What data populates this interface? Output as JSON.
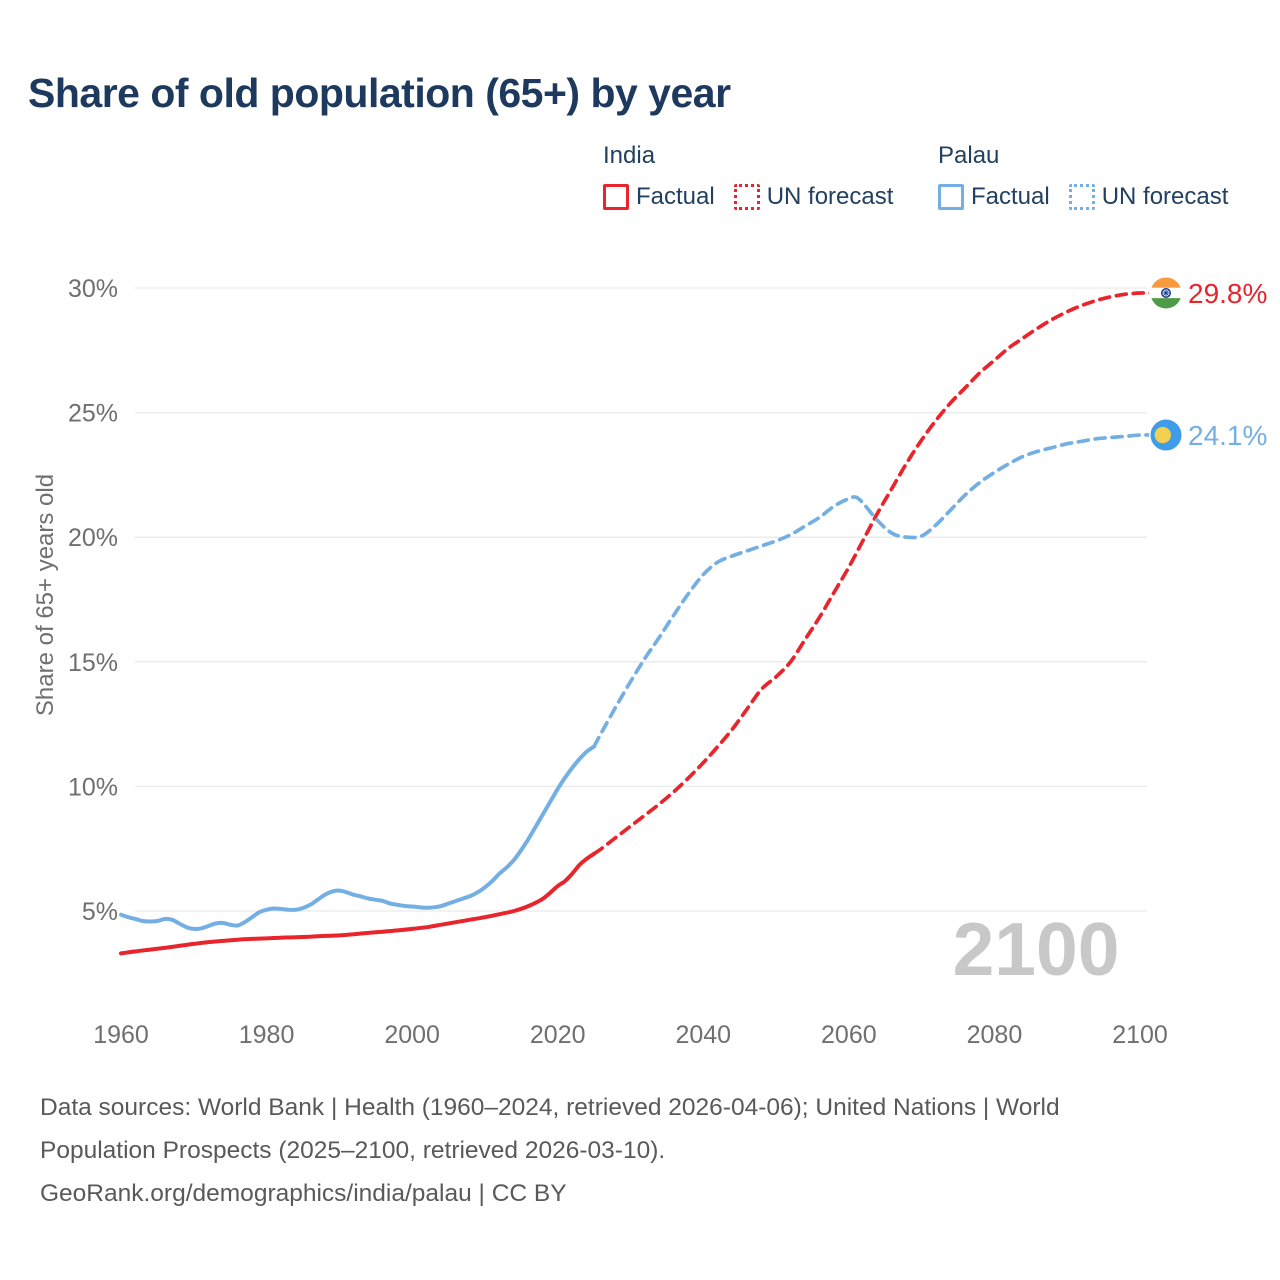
{
  "title": "Share of old population (65+) by year",
  "y_axis_title": "Share of 65+ years old",
  "legend": {
    "groups": [
      {
        "name": "India",
        "items": [
          {
            "label": "Factual",
            "style": "solid",
            "color": "#e8252c"
          },
          {
            "label": "UN forecast",
            "style": "dotted",
            "color": "#e8252c"
          }
        ]
      },
      {
        "name": "Palau",
        "items": [
          {
            "label": "Factual",
            "style": "solid",
            "color": "#74afe4"
          },
          {
            "label": "UN forecast",
            "style": "dotted",
            "color": "#74afe4"
          }
        ]
      }
    ]
  },
  "footer": {
    "line1": "Data sources: World Bank | Health (1960–2024, retrieved 2026-04-06); United Nations | World",
    "line2": "Population Prospects (2025–2100, retrieved 2026-03-10).",
    "line3": "GeoRank.org/demographics/india/palau | CC BY"
  },
  "colors": {
    "title": "#1d3a5e",
    "india": "#e8252c",
    "palau": "#74afe4",
    "axis_text": "#6f6f6f",
    "gridline": "#e9e9e9",
    "watermark": "#c8c8c8",
    "india_flag_saffron": "#f89a3e",
    "india_flag_green": "#4d9b44",
    "india_flag_chakra": "#1a3c8f",
    "palau_flag_blue": "#3e9ce8",
    "palau_flag_yellow": "#f2cf4e"
  },
  "chart_data": {
    "type": "line",
    "title": "Share of old population (65+) by year",
    "xlabel": "",
    "ylabel": "Share of 65+ years old",
    "xticks": [
      1960,
      1980,
      2000,
      2020,
      2040,
      2060,
      2080,
      2100
    ],
    "yticks": [
      5,
      10,
      15,
      20,
      25,
      30
    ],
    "xlim": [
      1960,
      2100
    ],
    "ylim": [
      3,
      31
    ],
    "grid": "horizontal",
    "legend_position": "top-right",
    "watermark": "2100",
    "series": [
      {
        "name": "India Factual",
        "color": "#e8252c",
        "style": "solid",
        "points": [
          [
            1960,
            3.3
          ],
          [
            1962,
            3.38
          ],
          [
            1964,
            3.45
          ],
          [
            1966,
            3.52
          ],
          [
            1968,
            3.6
          ],
          [
            1970,
            3.68
          ],
          [
            1972,
            3.75
          ],
          [
            1974,
            3.8
          ],
          [
            1976,
            3.85
          ],
          [
            1978,
            3.88
          ],
          [
            1980,
            3.9
          ],
          [
            1982,
            3.93
          ],
          [
            1984,
            3.95
          ],
          [
            1986,
            3.97
          ],
          [
            1988,
            4.0
          ],
          [
            1990,
            4.02
          ],
          [
            1992,
            4.07
          ],
          [
            1994,
            4.12
          ],
          [
            1996,
            4.17
          ],
          [
            1998,
            4.22
          ],
          [
            2000,
            4.28
          ],
          [
            2002,
            4.35
          ],
          [
            2004,
            4.45
          ],
          [
            2006,
            4.55
          ],
          [
            2008,
            4.65
          ],
          [
            2010,
            4.75
          ],
          [
            2012,
            4.87
          ],
          [
            2014,
            5.0
          ],
          [
            2016,
            5.2
          ],
          [
            2018,
            5.5
          ],
          [
            2020,
            6.0
          ],
          [
            2021,
            6.2
          ],
          [
            2022,
            6.5
          ],
          [
            2023,
            6.85
          ],
          [
            2024,
            7.1
          ],
          [
            2025,
            7.3
          ]
        ]
      },
      {
        "name": "India UN forecast",
        "color": "#e8252c",
        "style": "dashed",
        "points": [
          [
            2025,
            7.3
          ],
          [
            2026,
            7.5
          ],
          [
            2028,
            7.95
          ],
          [
            2030,
            8.4
          ],
          [
            2032,
            8.85
          ],
          [
            2034,
            9.3
          ],
          [
            2036,
            9.8
          ],
          [
            2038,
            10.35
          ],
          [
            2040,
            10.95
          ],
          [
            2042,
            11.6
          ],
          [
            2044,
            12.3
          ],
          [
            2046,
            13.1
          ],
          [
            2048,
            13.9
          ],
          [
            2050,
            14.4
          ],
          [
            2052,
            15.0
          ],
          [
            2054,
            15.9
          ],
          [
            2056,
            16.8
          ],
          [
            2058,
            17.8
          ],
          [
            2060,
            18.8
          ],
          [
            2062,
            19.9
          ],
          [
            2064,
            21.0
          ],
          [
            2066,
            22.0
          ],
          [
            2068,
            23.0
          ],
          [
            2070,
            23.9
          ],
          [
            2072,
            24.7
          ],
          [
            2074,
            25.4
          ],
          [
            2076,
            26.0
          ],
          [
            2078,
            26.6
          ],
          [
            2080,
            27.1
          ],
          [
            2082,
            27.6
          ],
          [
            2084,
            28.0
          ],
          [
            2086,
            28.4
          ],
          [
            2088,
            28.75
          ],
          [
            2090,
            29.05
          ],
          [
            2092,
            29.3
          ],
          [
            2094,
            29.5
          ],
          [
            2096,
            29.65
          ],
          [
            2098,
            29.75
          ],
          [
            2100,
            29.8
          ]
        ]
      },
      {
        "name": "Palau Factual",
        "color": "#74afe4",
        "style": "solid",
        "points": [
          [
            1960,
            4.85
          ],
          [
            1961,
            4.75
          ],
          [
            1962,
            4.68
          ],
          [
            1963,
            4.6
          ],
          [
            1964,
            4.58
          ],
          [
            1965,
            4.6
          ],
          [
            1966,
            4.68
          ],
          [
            1967,
            4.65
          ],
          [
            1968,
            4.5
          ],
          [
            1969,
            4.35
          ],
          [
            1970,
            4.28
          ],
          [
            1971,
            4.3
          ],
          [
            1972,
            4.4
          ],
          [
            1973,
            4.5
          ],
          [
            1974,
            4.52
          ],
          [
            1975,
            4.45
          ],
          [
            1976,
            4.42
          ],
          [
            1977,
            4.55
          ],
          [
            1978,
            4.75
          ],
          [
            1979,
            4.95
          ],
          [
            1980,
            5.05
          ],
          [
            1981,
            5.1
          ],
          [
            1982,
            5.08
          ],
          [
            1983,
            5.05
          ],
          [
            1984,
            5.05
          ],
          [
            1985,
            5.12
          ],
          [
            1986,
            5.25
          ],
          [
            1987,
            5.45
          ],
          [
            1988,
            5.65
          ],
          [
            1989,
            5.78
          ],
          [
            1990,
            5.82
          ],
          [
            1991,
            5.75
          ],
          [
            1992,
            5.65
          ],
          [
            1993,
            5.58
          ],
          [
            1994,
            5.5
          ],
          [
            1995,
            5.45
          ],
          [
            1996,
            5.4
          ],
          [
            1997,
            5.3
          ],
          [
            1998,
            5.25
          ],
          [
            1999,
            5.2
          ],
          [
            2000,
            5.18
          ],
          [
            2001,
            5.15
          ],
          [
            2002,
            5.13
          ],
          [
            2003,
            5.15
          ],
          [
            2004,
            5.2
          ],
          [
            2005,
            5.3
          ],
          [
            2006,
            5.4
          ],
          [
            2007,
            5.5
          ],
          [
            2008,
            5.6
          ],
          [
            2009,
            5.75
          ],
          [
            2010,
            5.95
          ],
          [
            2011,
            6.2
          ],
          [
            2012,
            6.5
          ],
          [
            2013,
            6.75
          ],
          [
            2014,
            7.05
          ],
          [
            2015,
            7.45
          ],
          [
            2016,
            7.9
          ],
          [
            2017,
            8.4
          ],
          [
            2018,
            8.9
          ],
          [
            2019,
            9.4
          ],
          [
            2020,
            9.9
          ],
          [
            2021,
            10.35
          ],
          [
            2022,
            10.75
          ],
          [
            2023,
            11.1
          ],
          [
            2024,
            11.4
          ],
          [
            2025,
            11.6
          ]
        ]
      },
      {
        "name": "Palau UN forecast",
        "color": "#74afe4",
        "style": "dashed",
        "points": [
          [
            2025,
            11.6
          ],
          [
            2026,
            12.15
          ],
          [
            2028,
            13.2
          ],
          [
            2030,
            14.2
          ],
          [
            2032,
            15.15
          ],
          [
            2034,
            16.0
          ],
          [
            2036,
            16.9
          ],
          [
            2038,
            17.75
          ],
          [
            2040,
            18.5
          ],
          [
            2042,
            19.0
          ],
          [
            2044,
            19.25
          ],
          [
            2046,
            19.45
          ],
          [
            2048,
            19.65
          ],
          [
            2050,
            19.85
          ],
          [
            2052,
            20.1
          ],
          [
            2054,
            20.45
          ],
          [
            2056,
            20.8
          ],
          [
            2058,
            21.25
          ],
          [
            2060,
            21.55
          ],
          [
            2061,
            21.6
          ],
          [
            2062,
            21.35
          ],
          [
            2064,
            20.65
          ],
          [
            2066,
            20.15
          ],
          [
            2068,
            20.0
          ],
          [
            2070,
            20.05
          ],
          [
            2072,
            20.5
          ],
          [
            2074,
            21.1
          ],
          [
            2076,
            21.7
          ],
          [
            2078,
            22.2
          ],
          [
            2080,
            22.6
          ],
          [
            2082,
            22.95
          ],
          [
            2084,
            23.25
          ],
          [
            2086,
            23.45
          ],
          [
            2088,
            23.6
          ],
          [
            2090,
            23.75
          ],
          [
            2092,
            23.85
          ],
          [
            2094,
            23.95
          ],
          [
            2096,
            24.0
          ],
          [
            2098,
            24.05
          ],
          [
            2100,
            24.1
          ]
        ]
      }
    ],
    "end_markers": [
      {
        "series": "India",
        "flag": "india",
        "label": "29.8%",
        "value": 29.8,
        "color": "#e8252c"
      },
      {
        "series": "Palau",
        "flag": "palau",
        "label": "24.1%",
        "value": 24.1,
        "color": "#74afe4"
      }
    ]
  }
}
